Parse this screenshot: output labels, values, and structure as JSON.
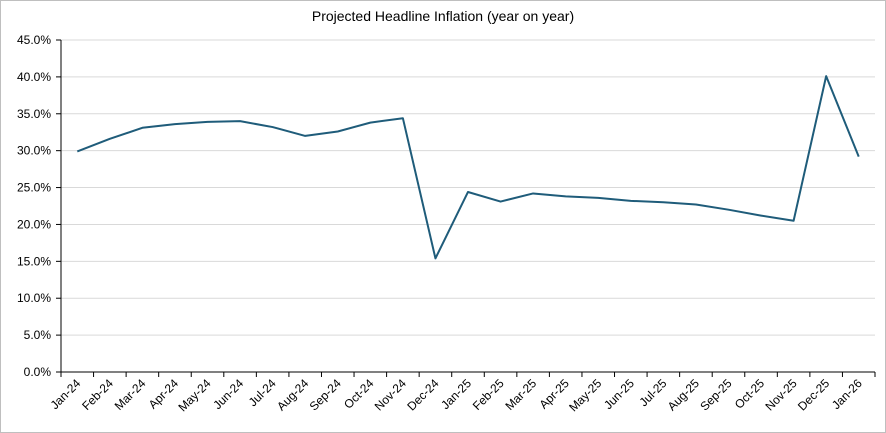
{
  "chart_data": {
    "type": "line",
    "title": "Projected Headline Inflation (year on year)",
    "xlabel": "",
    "ylabel": "",
    "categories": [
      "Jan-24",
      "Feb-24",
      "Mar-24",
      "Apr-24",
      "May-24",
      "Jun-24",
      "Jul-24",
      "Aug-24",
      "Sep-24",
      "Oct-24",
      "Nov-24",
      "Dec-24",
      "Jan-25",
      "Feb-25",
      "Mar-25",
      "Apr-25",
      "May-25",
      "Jun-25",
      "Jul-25",
      "Aug-25",
      "Sep-25",
      "Oct-25",
      "Nov-25",
      "Dec-25",
      "Jan-26"
    ],
    "series": [
      {
        "values": [
          29.9,
          31.6,
          33.1,
          33.6,
          33.9,
          34.0,
          33.2,
          32.0,
          32.6,
          33.8,
          34.4,
          15.4,
          24.4,
          23.1,
          24.2,
          23.8,
          23.6,
          23.2,
          23.0,
          22.7,
          22.0,
          21.2,
          20.5,
          40.1,
          29.2
        ],
        "color": "#1f5c7a"
      }
    ],
    "ylim": [
      0,
      45
    ],
    "yticks": [
      0,
      5,
      10,
      15,
      20,
      25,
      30,
      35,
      40,
      45
    ],
    "ytick_labels": [
      "0.0%",
      "5.0%",
      "10.0%",
      "15.0%",
      "20.0%",
      "25.0%",
      "30.0%",
      "35.0%",
      "40.0%",
      "45.0%"
    ],
    "grid": true,
    "legend": "none"
  }
}
